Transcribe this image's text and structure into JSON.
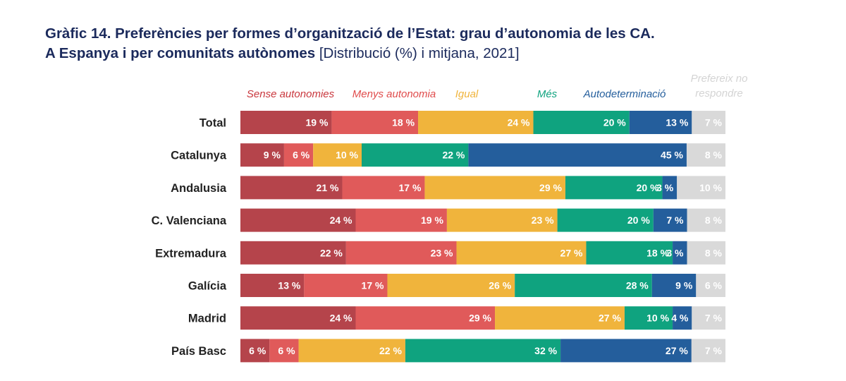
{
  "title_line1": "Gràfic 14. Preferències per formes d’organització de l’Estat: grau d’autonomia de les CA.",
  "title_line2_bold": "A Espanya i per comunitats autònomes",
  "title_line2_rest": "[Distribució (%) i mitjana, 2021]",
  "chart_data": {
    "type": "bar",
    "orientation": "horizontal",
    "stacked": true,
    "normalized_percent": true,
    "legend_position": "top",
    "value_suffix": " %",
    "categories": [
      "Total",
      "Catalunya",
      "Andalusia",
      "C. Valenciana",
      "Extremadura",
      "Galícia",
      "Madrid",
      "País Basc"
    ],
    "series": [
      {
        "name": "Sense autonomies",
        "color": "#b5444b",
        "legend_color": "#c9373d",
        "values": [
          19,
          9,
          21,
          24,
          22,
          13,
          24,
          6
        ]
      },
      {
        "name": "Menys autonomia",
        "color": "#e05a5a",
        "legend_color": "#e04b4b",
        "values": [
          18,
          6,
          17,
          19,
          23,
          17,
          29,
          6
        ]
      },
      {
        "name": "Igual",
        "color": "#f0b43c",
        "legend_color": "#f0b43c",
        "values": [
          24,
          10,
          29,
          23,
          27,
          26,
          27,
          22
        ]
      },
      {
        "name": "Més",
        "color": "#0fa37f",
        "legend_color": "#0fa37f",
        "values": [
          20,
          22,
          20,
          20,
          18,
          28,
          10,
          32
        ]
      },
      {
        "name": "Autodeterminació",
        "color": "#245e9c",
        "legend_color": "#245e9c",
        "values": [
          13,
          45,
          3,
          7,
          3,
          9,
          4,
          27
        ]
      },
      {
        "name": "Prefereix no respondre",
        "legend_lines": [
          "Prefereix no",
          "respondre"
        ],
        "color": "#d9d9d9",
        "legend_color": "#d4d4d4",
        "values": [
          7,
          8,
          10,
          8,
          8,
          6,
          7,
          7
        ]
      }
    ]
  }
}
